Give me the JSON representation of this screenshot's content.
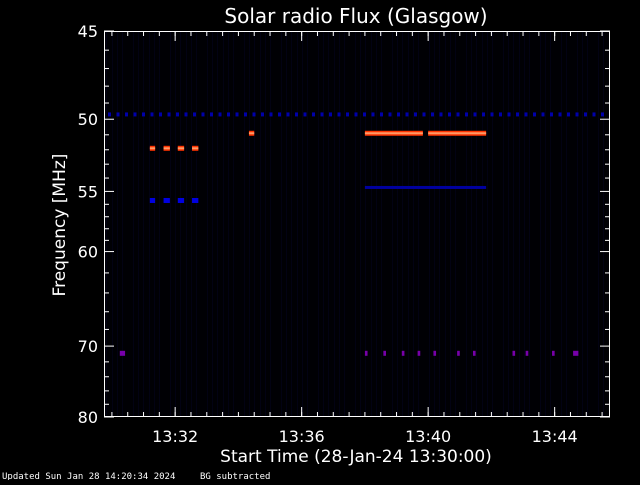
{
  "chart_data": {
    "type": "heatmap",
    "title": "Solar radio Flux (Glasgow)",
    "ylabel": "Frequency [MHz]",
    "xlabel": "Start Time (28-Jan-24 13:30:00)",
    "x_unit": "time (HH:MM)",
    "xlim": [
      "13:29:45",
      "13:45:45"
    ],
    "ylim": [
      45,
      80
    ],
    "y_scale": "reciprocal",
    "y_ticks": [
      45,
      50,
      55,
      60,
      70,
      80
    ],
    "y_tick_labels": [
      "45",
      "50",
      "55",
      "60",
      "70",
      "80"
    ],
    "x_ticks": [
      "13:32",
      "13:36",
      "13:40",
      "13:44"
    ],
    "colormap": [
      "#000008",
      "#00008c",
      "#0000ff",
      "#8800aa",
      "#ff3300",
      "#ff8844"
    ],
    "emissions": [
      {
        "start": "13:31:12",
        "end": "13:31:22",
        "freq": 51.9,
        "level": "high"
      },
      {
        "start": "13:31:38",
        "end": "13:31:50",
        "freq": 51.9,
        "level": "high"
      },
      {
        "start": "13:32:05",
        "end": "13:32:17",
        "freq": 51.9,
        "level": "high"
      },
      {
        "start": "13:32:32",
        "end": "13:32:44",
        "freq": 51.9,
        "level": "high"
      },
      {
        "start": "13:31:12",
        "end": "13:31:22",
        "freq": 55.7,
        "level": "medium"
      },
      {
        "start": "13:31:38",
        "end": "13:31:50",
        "freq": 55.7,
        "level": "medium"
      },
      {
        "start": "13:32:05",
        "end": "13:32:17",
        "freq": 55.7,
        "level": "medium"
      },
      {
        "start": "13:32:32",
        "end": "13:32:44",
        "freq": 55.7,
        "level": "medium"
      },
      {
        "start": "13:34:20",
        "end": "13:34:30",
        "freq": 50.9,
        "level": "high"
      },
      {
        "start": "13:38:00",
        "end": "13:39:50",
        "freq": 50.9,
        "level": "high"
      },
      {
        "start": "13:40:00",
        "end": "13:41:50",
        "freq": 50.9,
        "level": "high"
      },
      {
        "start": "13:38:00",
        "end": "13:41:50",
        "freq": 54.7,
        "level": "low"
      },
      {
        "start": "13:30:15",
        "end": "13:30:25",
        "freq": 70.9,
        "level": "mid"
      },
      {
        "start": "13:38:00",
        "end": "13:38:05",
        "freq": 70.9,
        "level": "mid"
      },
      {
        "start": "13:38:35",
        "end": "13:38:40",
        "freq": 70.9,
        "level": "mid"
      },
      {
        "start": "13:39:10",
        "end": "13:39:15",
        "freq": 70.9,
        "level": "mid"
      },
      {
        "start": "13:39:40",
        "end": "13:39:45",
        "freq": 70.9,
        "level": "mid"
      },
      {
        "start": "13:40:10",
        "end": "13:40:15",
        "freq": 70.9,
        "level": "mid"
      },
      {
        "start": "13:40:55",
        "end": "13:41:00",
        "freq": 70.9,
        "level": "mid"
      },
      {
        "start": "13:41:25",
        "end": "13:41:30",
        "freq": 70.9,
        "level": "mid"
      },
      {
        "start": "13:42:40",
        "end": "13:42:45",
        "freq": 70.9,
        "level": "mid"
      },
      {
        "start": "13:43:05",
        "end": "13:43:10",
        "freq": 70.9,
        "level": "mid"
      },
      {
        "start": "13:43:55",
        "end": "13:44:00",
        "freq": 70.9,
        "level": "mid"
      },
      {
        "start": "13:44:35",
        "end": "13:44:45",
        "freq": 70.9,
        "level": "mid"
      }
    ],
    "interference_line_freq": 49.7
  },
  "footer": {
    "updated": "Updated Sun Jan 28 14:20:34 2024",
    "note": "BG subtracted"
  }
}
